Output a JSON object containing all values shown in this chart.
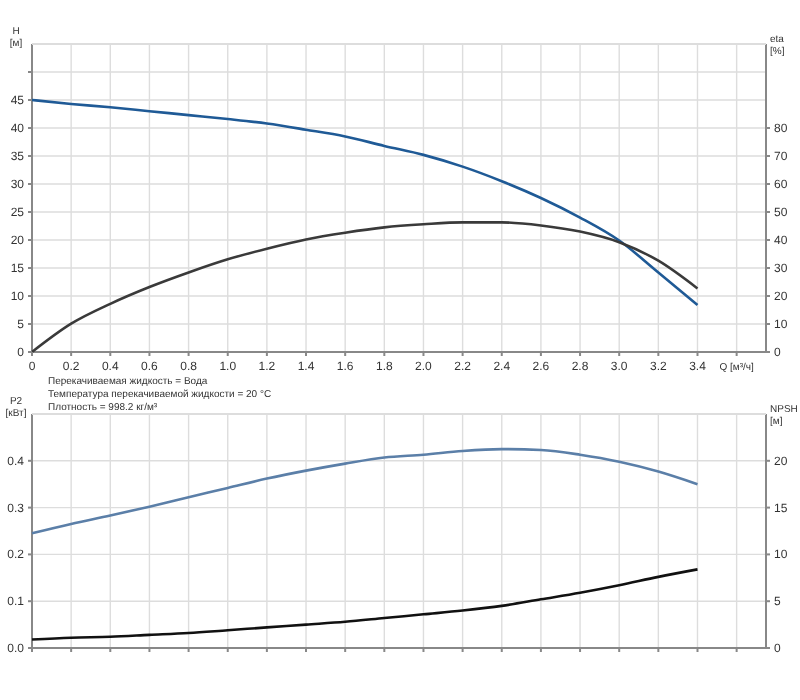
{
  "chart_data": [
    {
      "type": "line",
      "xlabel": "Q [м³/ч]",
      "ylabel": "H [м]",
      "y2label": "eta [%]",
      "xlim": [
        0,
        3.75
      ],
      "xticks": [
        0,
        0.2,
        0.4,
        0.6,
        0.8,
        {
          "value": 1,
          "label": "1.0"
        },
        1.2,
        1.4,
        1.6,
        1.8,
        {
          "value": 2,
          "label": "2.0"
        },
        2.2,
        2.4,
        2.6,
        2.8,
        {
          "value": 3,
          "label": "3.0"
        },
        3.2,
        3.4,
        {
          "value": 3.6,
          "label": null
        }
      ],
      "ylim": [
        0,
        55
      ],
      "yticks": [
        0,
        5,
        10,
        15,
        20,
        25,
        30,
        35,
        40,
        45,
        {
          "value": 50,
          "label": null
        }
      ],
      "y2lim": [
        0,
        110
      ],
      "y2ticks": [
        0,
        10,
        20,
        30,
        40,
        50,
        60,
        70,
        80
      ],
      "grid": true,
      "x": [
        0,
        0.2,
        0.4,
        0.6,
        0.8,
        1.0,
        1.2,
        1.4,
        1.6,
        1.8,
        2.0,
        2.2,
        2.4,
        2.6,
        2.8,
        3.0,
        3.2,
        3.4
      ],
      "series": [
        {
          "color": "#1f5a96",
          "values": [
            45,
            44.3,
            43.7,
            43,
            42.3,
            41.6,
            40.8,
            39.7,
            38.5,
            36.8,
            35.2,
            33.1,
            30.5,
            27.5,
            24,
            19.9,
            14.2,
            8.4
          ]
        },
        {
          "color": "#3a3a3a",
          "axis": "y2",
          "values": [
            0,
            10.1,
            17.2,
            23.2,
            28.4,
            33.1,
            36.9,
            40.2,
            42.6,
            44.5,
            45.6,
            46.3,
            46.3,
            45.2,
            43,
            39.2,
            32.6,
            22.7
          ]
        }
      ],
      "annotations": [
        "Перекачиваемая жидкость = Вода",
        "Температура перекачиваемой жидкости = 20 °C",
        "Плотность = 998.2 кг/м³"
      ]
    },
    {
      "type": "line",
      "ylabel": "P2 [кВт]",
      "y2label": "NPSH [м]",
      "xlim": [
        0,
        3.75
      ],
      "xticks": [
        0,
        0.2,
        0.4,
        0.6,
        0.8,
        1.0,
        1.2,
        1.4,
        1.6,
        1.8,
        2.0,
        2.2,
        2.4,
        2.6,
        2.8,
        3.0,
        3.2,
        3.4,
        3.6
      ],
      "ylim": [
        0,
        0.5
      ],
      "yticks": [
        {
          "value": 0,
          "label": "0.0"
        },
        0.1,
        0.2,
        0.3,
        0.4
      ],
      "y2lim": [
        0,
        25
      ],
      "y2ticks": [
        0,
        5,
        10,
        15,
        20
      ],
      "grid": true,
      "tick_labels": "y",
      "x": [
        0,
        0.2,
        0.4,
        0.6,
        0.8,
        1.0,
        1.2,
        1.4,
        1.6,
        1.8,
        2.0,
        2.2,
        2.4,
        2.6,
        2.8,
        3.0,
        3.2,
        3.4
      ],
      "series": [
        {
          "color": "#5b7fa8",
          "values": [
            0.245,
            0.265,
            0.283,
            0.302,
            0.322,
            0.342,
            0.362,
            0.379,
            0.394,
            0.407,
            0.413,
            0.421,
            0.425,
            0.423,
            0.413,
            0.398,
            0.377,
            0.35
          ]
        },
        {
          "color": "#111111",
          "axis": "y2",
          "values": [
            0.9,
            1.1,
            1.2,
            1.4,
            1.6,
            1.9,
            2.2,
            2.5,
            2.8,
            3.2,
            3.6,
            4.0,
            4.5,
            5.2,
            5.9,
            6.7,
            7.6,
            8.4
          ]
        }
      ]
    }
  ]
}
